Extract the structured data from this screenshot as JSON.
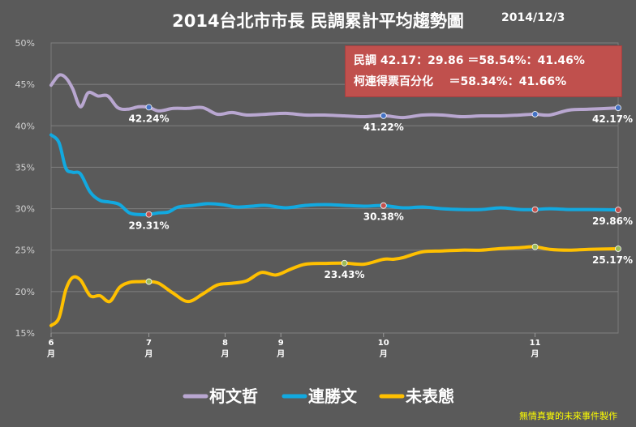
{
  "header": {
    "title": "2014台北市市長  民調累計平均趨勢圖",
    "date": "2014/12/3"
  },
  "infobox": {
    "line1": "民調 42.17：29.86 ＝58.54%：41.46%",
    "line2": "柯連得票百分化    ＝58.34%：41.66%"
  },
  "credit": "無情真實的未來事件製作",
  "colors": {
    "background": "#5a5a5a",
    "ko": "#b9a7d1",
    "lien": "#12a9e0",
    "undecided": "#ffc000",
    "infobox": "#c0504d"
  },
  "chart_data": {
    "type": "line",
    "title": "2014台北市市長  民調累計平均趨勢圖",
    "xlabel": "",
    "ylabel": "",
    "ylim": [
      15,
      50
    ],
    "y_ticks": [
      "15%",
      "20%",
      "25%",
      "30%",
      "35%",
      "40%",
      "45%",
      "50%"
    ],
    "x_ticks": [
      {
        "month": "6",
        "unit": "月",
        "pos": 6.0
      },
      {
        "month": "7",
        "unit": "月",
        "pos": 7.0
      },
      {
        "month": "8",
        "unit": "月",
        "pos": 7.78
      },
      {
        "month": "9",
        "unit": "月",
        "pos": 8.35
      },
      {
        "month": "10",
        "unit": "月",
        "pos": 9.4
      },
      {
        "month": "11",
        "unit": "月",
        "pos": 10.95
      }
    ],
    "xlim": [
      6.0,
      11.8
    ],
    "grid": true,
    "legend": "bottom",
    "series": [
      {
        "name": "柯文哲",
        "color": "#b9a7d1",
        "x": [
          6.0,
          6.08,
          6.15,
          6.22,
          6.3,
          6.38,
          6.48,
          6.58,
          6.68,
          6.78,
          6.9,
          7.0,
          7.1,
          7.25,
          7.4,
          7.55,
          7.7,
          7.85,
          8.0,
          8.2,
          8.4,
          8.6,
          8.8,
          9.0,
          9.2,
          9.4,
          9.6,
          9.8,
          10.0,
          10.2,
          10.4,
          10.6,
          10.8,
          10.95,
          11.1,
          11.3,
          11.5,
          11.8
        ],
        "y": [
          44.9,
          46.1,
          45.8,
          44.5,
          42.3,
          44.0,
          43.6,
          43.6,
          42.2,
          42.0,
          42.3,
          42.24,
          41.8,
          42.1,
          42.1,
          42.2,
          41.4,
          41.6,
          41.3,
          41.4,
          41.5,
          41.3,
          41.3,
          41.2,
          41.1,
          41.22,
          41.0,
          41.3,
          41.3,
          41.1,
          41.2,
          41.2,
          41.3,
          41.4,
          41.3,
          41.9,
          42.0,
          42.17
        ],
        "labels": [
          {
            "x": 7.0,
            "y": 42.24,
            "text": "42.24%"
          },
          {
            "x": 9.4,
            "y": 41.22,
            "text": "41.22%"
          },
          {
            "x": 11.8,
            "y": 42.17,
            "text": "42.17%"
          }
        ],
        "markers": [
          7.0,
          9.4,
          10.95,
          11.8
        ]
      },
      {
        "name": "連勝文",
        "color": "#12a9e0",
        "x": [
          6.0,
          6.08,
          6.15,
          6.22,
          6.3,
          6.4,
          6.5,
          6.6,
          6.7,
          6.8,
          6.9,
          7.0,
          7.1,
          7.2,
          7.3,
          7.45,
          7.6,
          7.75,
          7.9,
          8.05,
          8.2,
          8.4,
          8.6,
          8.8,
          9.0,
          9.2,
          9.4,
          9.6,
          9.8,
          10.0,
          10.2,
          10.4,
          10.6,
          10.8,
          10.95,
          11.1,
          11.3,
          11.5,
          11.8
        ],
        "y": [
          38.9,
          38.0,
          34.9,
          34.4,
          34.2,
          32.0,
          31.0,
          30.8,
          30.5,
          29.5,
          29.3,
          29.31,
          29.5,
          29.6,
          30.2,
          30.4,
          30.6,
          30.5,
          30.2,
          30.3,
          30.4,
          30.1,
          30.4,
          30.5,
          30.4,
          30.3,
          30.38,
          30.1,
          30.2,
          30.0,
          29.9,
          29.9,
          30.1,
          29.9,
          29.9,
          30.0,
          29.9,
          29.9,
          29.86
        ],
        "labels": [
          {
            "x": 7.0,
            "y": 29.31,
            "text": "29.31%"
          },
          {
            "x": 9.4,
            "y": 30.38,
            "text": "30.38%"
          },
          {
            "x": 11.8,
            "y": 29.86,
            "text": "29.86%"
          }
        ],
        "markers": [
          7.0,
          9.4,
          10.95,
          11.8
        ]
      },
      {
        "name": "未表態",
        "color": "#ffc000",
        "x": [
          6.0,
          6.08,
          6.15,
          6.22,
          6.3,
          6.4,
          6.5,
          6.6,
          6.7,
          6.8,
          6.9,
          7.0,
          7.1,
          7.25,
          7.4,
          7.55,
          7.7,
          7.85,
          8.0,
          8.15,
          8.3,
          8.45,
          8.6,
          8.8,
          9.0,
          9.2,
          9.4,
          9.5,
          9.6,
          9.8,
          10.0,
          10.2,
          10.4,
          10.6,
          10.8,
          10.95,
          11.1,
          11.3,
          11.5,
          11.8
        ],
        "y": [
          15.9,
          16.8,
          20.2,
          21.7,
          21.4,
          19.5,
          19.5,
          18.8,
          20.5,
          21.1,
          21.2,
          21.2,
          21.0,
          19.8,
          18.8,
          19.7,
          20.8,
          21.0,
          21.3,
          22.3,
          22.0,
          22.7,
          23.3,
          23.4,
          23.43,
          23.3,
          23.9,
          23.9,
          24.1,
          24.8,
          24.9,
          25.0,
          25.0,
          25.2,
          25.3,
          25.4,
          25.1,
          25.0,
          25.1,
          25.17
        ],
        "labels": [
          {
            "x": 9.0,
            "y": 23.43,
            "text": "23.43%"
          },
          {
            "x": 11.8,
            "y": 25.17,
            "text": "25.17%"
          }
        ],
        "markers": [
          7.0,
          9.0,
          10.95,
          11.8
        ]
      }
    ]
  }
}
